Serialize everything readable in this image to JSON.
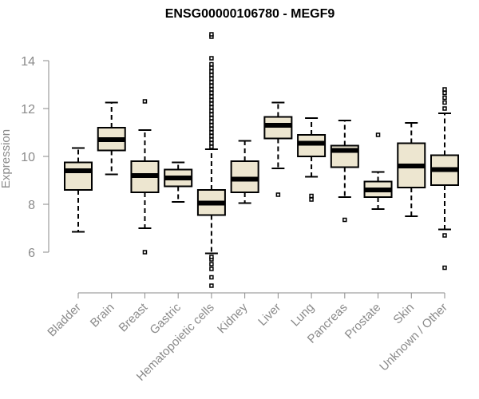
{
  "chart_data": {
    "type": "boxplot",
    "title": "ENSG00000106780 - MEGF9",
    "xlabel": "",
    "ylabel": "Expression",
    "ylim": [
      4.3,
      15.2
    ],
    "yticks": [
      6,
      8,
      10,
      12,
      14
    ],
    "grid": false,
    "categories": [
      "Bladder",
      "Brain",
      "Breast",
      "Gastric",
      "Hematopoietic cells",
      "Kidney",
      "Liver",
      "Lung",
      "Pancreas",
      "Prostate",
      "Skin",
      "Unknown / Other"
    ],
    "boxes": [
      {
        "category": "Bladder",
        "whisker_low": 6.85,
        "q1": 8.6,
        "median": 9.4,
        "q3": 9.75,
        "whisker_high": 10.35,
        "outliers": []
      },
      {
        "category": "Brain",
        "whisker_low": 9.25,
        "q1": 10.25,
        "median": 10.7,
        "q3": 11.2,
        "whisker_high": 12.25,
        "outliers": []
      },
      {
        "category": "Breast",
        "whisker_low": 7.0,
        "q1": 8.5,
        "median": 9.2,
        "q3": 9.8,
        "whisker_high": 11.1,
        "outliers": [
          6.0,
          12.3
        ]
      },
      {
        "category": "Gastric",
        "whisker_low": 8.1,
        "q1": 8.75,
        "median": 9.1,
        "q3": 9.45,
        "whisker_high": 9.75,
        "outliers": []
      },
      {
        "category": "Hematopoietic cells",
        "whisker_low": 5.95,
        "q1": 7.55,
        "median": 8.05,
        "q3": 8.6,
        "whisker_high": 10.3,
        "outliers": [
          4.6,
          4.95,
          5.3,
          5.5,
          5.7,
          5.8,
          10.4,
          10.55,
          10.7,
          10.85,
          11.0,
          11.15,
          11.3,
          11.45,
          11.6,
          11.75,
          11.9,
          12.05,
          12.2,
          12.35,
          12.5,
          12.65,
          12.8,
          12.95,
          13.1,
          13.25,
          13.4,
          13.55,
          13.7,
          13.85,
          14.1,
          15.0,
          15.1
        ]
      },
      {
        "category": "Kidney",
        "whisker_low": 8.05,
        "q1": 8.5,
        "median": 9.05,
        "q3": 9.8,
        "whisker_high": 10.65,
        "outliers": []
      },
      {
        "category": "Liver",
        "whisker_low": 9.5,
        "q1": 10.75,
        "median": 11.3,
        "q3": 11.65,
        "whisker_high": 12.25,
        "outliers": [
          8.4
        ]
      },
      {
        "category": "Lung",
        "whisker_low": 9.15,
        "q1": 10.0,
        "median": 10.55,
        "q3": 10.9,
        "whisker_high": 11.6,
        "outliers": [
          8.2,
          8.35
        ]
      },
      {
        "category": "Pancreas",
        "whisker_low": 8.3,
        "q1": 9.55,
        "median": 10.25,
        "q3": 10.45,
        "whisker_high": 11.5,
        "outliers": [
          7.35
        ]
      },
      {
        "category": "Prostate",
        "whisker_low": 7.8,
        "q1": 8.3,
        "median": 8.6,
        "q3": 8.95,
        "whisker_high": 9.35,
        "outliers": [
          10.9
        ]
      },
      {
        "category": "Skin",
        "whisker_low": 7.5,
        "q1": 8.7,
        "median": 9.6,
        "q3": 10.55,
        "whisker_high": 11.4,
        "outliers": []
      },
      {
        "category": "Unknown / Other",
        "whisker_low": 6.95,
        "q1": 8.8,
        "median": 9.45,
        "q3": 10.05,
        "whisker_high": 11.8,
        "outliers": [
          5.35,
          6.7,
          12.0,
          12.25,
          12.45,
          12.65,
          12.8
        ]
      }
    ]
  },
  "colors": {
    "box_fill": "#ede6d0",
    "line": "#000000",
    "axis": "#8a8a8a"
  }
}
